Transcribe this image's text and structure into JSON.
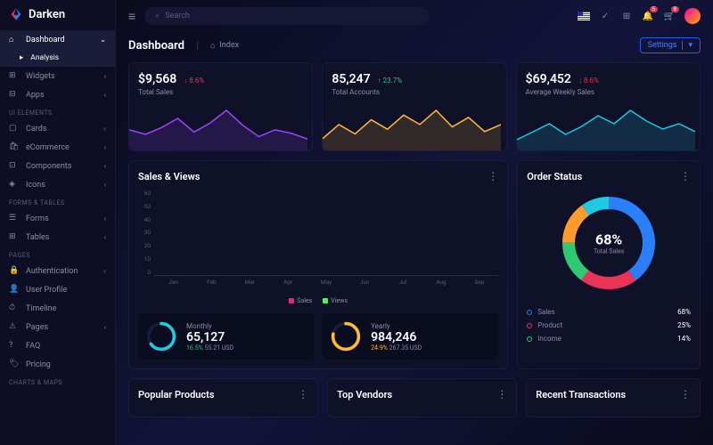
{
  "brand": {
    "name": "Darken"
  },
  "search": {
    "placeholder": "Search"
  },
  "topbar": {
    "notif_badge": "5",
    "cart_badge": "8"
  },
  "sidebar": {
    "items": [
      {
        "label": "Dashboard",
        "active": true,
        "chev": "⌄"
      },
      {
        "label": "Analysis",
        "sub": true,
        "active": true
      },
      {
        "label": "Widgets",
        "chev": "‹"
      },
      {
        "label": "Apps",
        "chev": "‹"
      }
    ],
    "section1": "UI ELEMENTS",
    "ui": [
      {
        "label": "Cards",
        "chev": "‹"
      },
      {
        "label": "eCommerce",
        "chev": "‹"
      },
      {
        "label": "Components",
        "chev": "‹"
      },
      {
        "label": "Icons",
        "chev": "‹"
      }
    ],
    "section2": "FORMS & TABLES",
    "forms": [
      {
        "label": "Forms",
        "chev": "‹"
      },
      {
        "label": "Tables",
        "chev": "‹"
      }
    ],
    "section3": "PAGES",
    "pages": [
      {
        "label": "Authentication",
        "chev": "‹"
      },
      {
        "label": "User Profile"
      },
      {
        "label": "Timeline"
      },
      {
        "label": "Pages",
        "chev": "‹"
      },
      {
        "label": "FAQ"
      },
      {
        "label": "Pricing"
      }
    ],
    "section4": "CHARTS & MAPS"
  },
  "page": {
    "title": "Dashboard",
    "crumb_icon": "⌂",
    "crumb": "Index",
    "settings": "Settings"
  },
  "stats": [
    {
      "value": "$9,568",
      "change": "↓ 8.6%",
      "dir": "down",
      "label": "Total Sales",
      "color": "#a044ff",
      "points": [
        18,
        14,
        20,
        28,
        16,
        24,
        35,
        22,
        12,
        18,
        15,
        10
      ]
    },
    {
      "value": "85,247",
      "change": "↑ 23.7%",
      "dir": "up",
      "label": "Total Accounts",
      "color": "#ffb83d",
      "points": [
        10,
        22,
        14,
        26,
        18,
        30,
        22,
        34,
        20,
        28,
        16,
        22
      ]
    },
    {
      "value": "$69,452",
      "change": "↓ 8.6%",
      "dir": "down",
      "label": "Average Weekly Sales",
      "color": "#1fc8e3",
      "points": [
        8,
        14,
        20,
        12,
        18,
        26,
        20,
        30,
        22,
        16,
        20,
        14
      ]
    }
  ],
  "salesViews": {
    "title": "Sales & Views",
    "ylim": [
      0,
      60
    ],
    "yticks": [
      60,
      50,
      40,
      30,
      20,
      10,
      0
    ],
    "months": [
      "Jan",
      "Feb",
      "Mar",
      "Apr",
      "May",
      "Jun",
      "Jul",
      "Aug",
      "Sep"
    ],
    "sales": [
      20,
      33,
      55,
      12,
      38,
      18,
      30,
      14,
      26
    ],
    "views": [
      16,
      24,
      30,
      20,
      22,
      26,
      24,
      18,
      32
    ],
    "sales_color": "#e9237e",
    "sales_color2": "#a044ff",
    "views_color": "#3cff5a",
    "views_color2": "#0dc96e",
    "legend": [
      "Sales",
      "Views"
    ]
  },
  "summary": {
    "monthly": {
      "label": "Monthly",
      "value": "65,127",
      "pct": "16.5%",
      "usd": "55.21 USD",
      "pct_color": "#2ec971",
      "ring": "#1fc8e3",
      "ring_pct": 65
    },
    "yearly": {
      "label": "Yearly",
      "value": "984,246",
      "pct": "24.9%",
      "usd": "267.35 USD",
      "pct_color": "#ffb83d",
      "ring": "#ffb83d",
      "ring_pct": 78
    }
  },
  "orderStatus": {
    "title": "Order Status",
    "center_pct": "68%",
    "center_label": "Total Sales",
    "segments": [
      {
        "label": "Sales",
        "pct": "68%",
        "color": "#2a7fff",
        "value": 40
      },
      {
        "label": "Product",
        "pct": "25%",
        "color": "#e93456",
        "value": 20
      },
      {
        "label": "Income",
        "pct": "14%",
        "color": "#2ec971",
        "value": 15
      }
    ],
    "extra_colors": [
      "#ff9b2a",
      "#1fc8e3"
    ]
  },
  "bottom": {
    "popular": "Popular Products",
    "vendors": "Top Vendors",
    "transactions": "Recent Transactions"
  }
}
